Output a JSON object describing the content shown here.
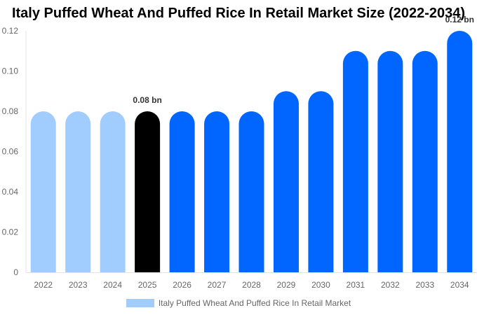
{
  "chart_data": {
    "type": "bar",
    "title": "Italy Puffed Wheat And Puffed Rice In Retail Market Size (2022-2034)",
    "categories": [
      "2022",
      "2023",
      "2024",
      "2025",
      "2026",
      "2027",
      "2028",
      "2029",
      "2030",
      "2031",
      "2032",
      "2033",
      "2034"
    ],
    "series": [
      {
        "name": "Italy Puffed Wheat And Puffed Rice In Retail Market",
        "values": [
          0.08,
          0.08,
          0.08,
          0.08,
          0.08,
          0.08,
          0.08,
          0.09,
          0.09,
          0.11,
          0.11,
          0.11,
          0.12
        ]
      }
    ],
    "yticks": [
      "0",
      "0.02",
      "0.04",
      "0.06",
      "0.08",
      "0.10",
      "0.12"
    ],
    "ylim": [
      0,
      0.12
    ],
    "xlabel": "",
    "ylabel": "",
    "highlight_index": 3,
    "data_labels": [
      {
        "index": 3,
        "text": "0.08 bn"
      },
      {
        "index": 12,
        "text": "0.12 bn"
      }
    ],
    "colors": {
      "historical": "#a0cdfd",
      "highlight": "#000000",
      "forecast": "#0066ff",
      "legend": "#a0cdfd"
    },
    "legend_position": "bottom-center",
    "grid": false
  }
}
